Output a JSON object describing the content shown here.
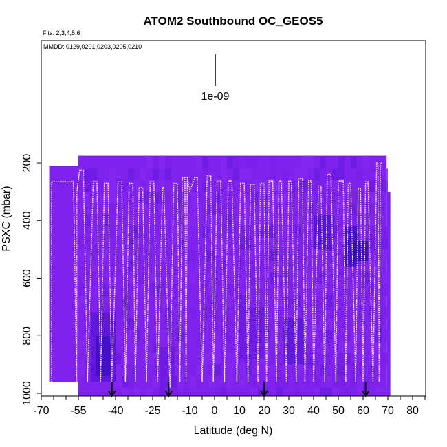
{
  "chart_data": {
    "type": "heatmap",
    "title": "ATOM2 Southbound OC_GEOS5",
    "flights_note": "Flts: 2,3,4,5,6",
    "dates_note": "MMDD: 0129,0201,0203,0205,0210",
    "scale_label": "1e-09",
    "xlabel": "Latitude (deg N)",
    "ylabel": "PSXC (mbar)",
    "xlim": [
      -70,
      85
    ],
    "ylim": [
      1010,
      0
    ],
    "x_ticks": [
      -70,
      -55,
      -40,
      -25,
      -10,
      0,
      10,
      20,
      30,
      40,
      50,
      60,
      70,
      80
    ],
    "x_minor_ticks": [
      -65,
      -60,
      -50,
      -45,
      -35,
      -30,
      -20,
      -15,
      -5,
      5,
      15,
      25,
      35,
      45,
      55,
      65,
      75,
      85
    ],
    "y_ticks": [
      200,
      400,
      600,
      800,
      1000
    ],
    "grid": false,
    "legend": "none",
    "fill_color": "#7f22ee",
    "arrow_color": "#000000",
    "track_color": "#ffffff",
    "curtain": [
      {
        "lat": [
          -66.8,
          -55.2
        ],
        "p": [
          210,
          960
        ]
      },
      {
        "lat": [
          -55.2,
          69.5
        ],
        "p": [
          175,
          1010
        ]
      },
      {
        "lat": [
          69.5,
          71.0
        ],
        "p": [
          300,
          1010
        ]
      }
    ],
    "dark_patches": [
      {
        "lat": [
          -50,
          -40
        ],
        "p": [
          720,
          960
        ],
        "shade": "#5a14d6"
      },
      {
        "lat": [
          -48,
          -42
        ],
        "p": [
          800,
          940
        ],
        "shade": "#3e0cc2"
      },
      {
        "lat": [
          40,
          48
        ],
        "p": [
          380,
          500
        ],
        "shade": "#4d12cf"
      },
      {
        "lat": [
          52,
          58
        ],
        "p": [
          420,
          560
        ],
        "shade": "#3a0bbf"
      },
      {
        "lat": [
          28,
          36
        ],
        "p": [
          740,
          900
        ],
        "shade": "#5a16d8"
      },
      {
        "lat": [
          10,
          20
        ],
        "p": [
          700,
          880
        ],
        "shade": "#6a1ae0"
      },
      {
        "lat": [
          -22,
          -16
        ],
        "p": [
          840,
          980
        ],
        "shade": "#6a1ae0"
      },
      {
        "lat": [
          56,
          62
        ],
        "p": [
          470,
          540
        ],
        "shade": "#2e09b4"
      }
    ],
    "arrows_lat": [
      -41.5,
      -18.5,
      20,
      61
    ],
    "flight_track": {
      "lat": [
        -65.8,
        -65.8,
        -61,
        -57,
        -55.7,
        -55.6,
        -54.5,
        -53,
        -51.3,
        -49,
        -47.5,
        -46,
        -44.5,
        -43,
        -41.5,
        -39,
        -37.5,
        -36,
        -34.5,
        -33,
        -32,
        -30.5,
        -29,
        -27.5,
        -26,
        -24.5,
        -23,
        -21,
        -20.5,
        -18,
        -16.5,
        -15,
        -14,
        -13,
        -12,
        -11.5,
        -11,
        -10,
        -8,
        -7,
        -5,
        -3,
        -1.5,
        -0.5,
        1,
        2.5,
        4,
        5.5,
        7,
        9,
        10.5,
        12,
        13.5,
        14.5,
        16,
        17.5,
        18.5,
        20,
        21,
        22,
        23.5,
        25,
        26,
        27,
        29,
        30,
        31,
        33,
        34,
        35.5,
        36.5,
        38,
        39,
        40,
        42,
        43,
        44.5,
        45.5,
        47,
        49,
        50,
        52,
        53,
        54,
        55,
        57,
        58,
        59,
        60,
        61,
        62,
        64,
        65.5,
        66,
        66.5,
        67,
        68
      ],
      "p": [
        960,
        265,
        265,
        265,
        960,
        300,
        225,
        225,
        960,
        265,
        265,
        960,
        270,
        270,
        960,
        265,
        265,
        960,
        270,
        270,
        960,
        285,
        285,
        960,
        265,
        265,
        960,
        285,
        285,
        980,
        270,
        270,
        960,
        250,
        250,
        960,
        250,
        300,
        250,
        250,
        960,
        245,
        245,
        960,
        262,
        262,
        960,
        262,
        262,
        960,
        270,
        270,
        960,
        275,
        275,
        960,
        270,
        270,
        960,
        262,
        262,
        960,
        262,
        262,
        960,
        262,
        262,
        960,
        255,
        255,
        960,
        262,
        262,
        960,
        280,
        280,
        960,
        240,
        240,
        960,
        262,
        262,
        960,
        270,
        270,
        960,
        290,
        290,
        960,
        265,
        265,
        960,
        200,
        200,
        960,
        200,
        200
      ],
      "note": "flight track roughly follows down/up profiles in latitude"
    }
  }
}
